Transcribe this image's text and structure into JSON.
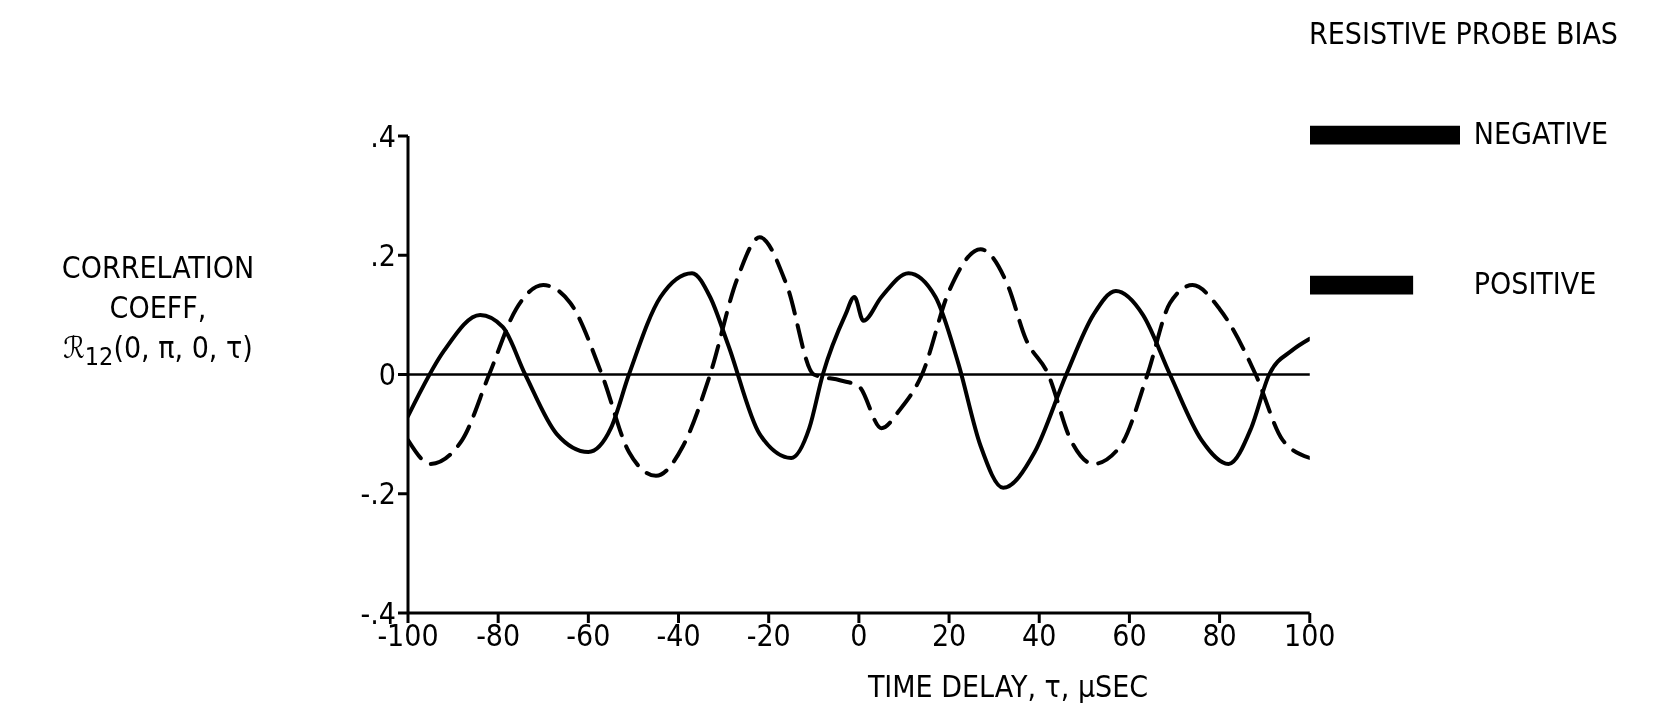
{
  "chart_data": {
    "type": "line",
    "xlabel": "TIME DELAY, τ, μSEC",
    "ylabel": "CORRELATION\nCOEFF,\nℛ$_{12}$(0, π, 0, τ)",
    "legend_title": "RESISTIVE PROBE BIAS",
    "legend": "top right",
    "grid": false,
    "marker": "none",
    "xlim": [
      -100,
      100
    ],
    "xticks": [
      -100,
      -80,
      -60,
      -40,
      -20,
      0,
      20,
      40,
      60,
      80,
      100
    ],
    "ylim": [
      -0.4,
      0.4
    ],
    "yticks": [
      {
        "value": -0.4,
        "label": "-.4"
      },
      {
        "value": -0.2,
        "label": "-.2"
      },
      {
        "value": 0,
        "label": "0"
      },
      {
        "value": 0.2,
        "label": ".2"
      },
      {
        "value": 0.4,
        "label": ".4"
      }
    ],
    "ref_lines": [
      {
        "axis": "y",
        "value": 0,
        "color": "#000000",
        "line_style": "solid"
      }
    ],
    "series": [
      {
        "name": "NEGATIVE",
        "color": "#000000",
        "line_style": "solid",
        "x": [
          -100,
          -92,
          -84,
          -79,
          -74,
          -67,
          -60,
          -55,
          -51,
          -44,
          -37,
          -33,
          -29,
          -22,
          -15,
          -11,
          -8,
          -3,
          -1,
          1,
          5,
          11,
          17,
          22,
          27,
          32,
          39,
          46,
          52,
          57,
          63,
          69,
          76,
          82,
          87,
          91,
          96,
          100
        ],
        "values": [
          -0.07,
          0.04,
          0.1,
          0.08,
          0.0,
          -0.1,
          -0.13,
          -0.09,
          0.0,
          0.13,
          0.17,
          0.13,
          0.05,
          -0.1,
          -0.14,
          -0.09,
          0.0,
          0.1,
          0.13,
          0.09,
          0.13,
          0.17,
          0.13,
          0.02,
          -0.12,
          -0.19,
          -0.13,
          0.0,
          0.1,
          0.14,
          0.1,
          0.0,
          -0.11,
          -0.15,
          -0.09,
          0.0,
          0.04,
          0.06
        ]
      },
      {
        "name": "POSITIVE",
        "color": "#000000",
        "line_style": "dashed",
        "x": [
          -100,
          -95,
          -88,
          -82,
          -76,
          -70,
          -64,
          -57,
          -51,
          -45,
          -39,
          -33,
          -27,
          -22,
          -16,
          -10,
          -4,
          0,
          5,
          9,
          14,
          20,
          27,
          33,
          37,
          42,
          47,
          52,
          58,
          64,
          69,
          74,
          80,
          88,
          94,
          100
        ],
        "values": [
          -0.11,
          -0.15,
          -0.11,
          0.0,
          0.11,
          0.15,
          0.12,
          0.0,
          -0.13,
          -0.17,
          -0.12,
          0.0,
          0.16,
          0.23,
          0.15,
          0.0,
          -0.01,
          -0.02,
          -0.09,
          -0.06,
          0.0,
          0.14,
          0.21,
          0.15,
          0.06,
          0.0,
          -0.11,
          -0.15,
          -0.12,
          0.0,
          0.12,
          0.15,
          0.11,
          0.0,
          -0.11,
          -0.14
        ]
      }
    ]
  }
}
